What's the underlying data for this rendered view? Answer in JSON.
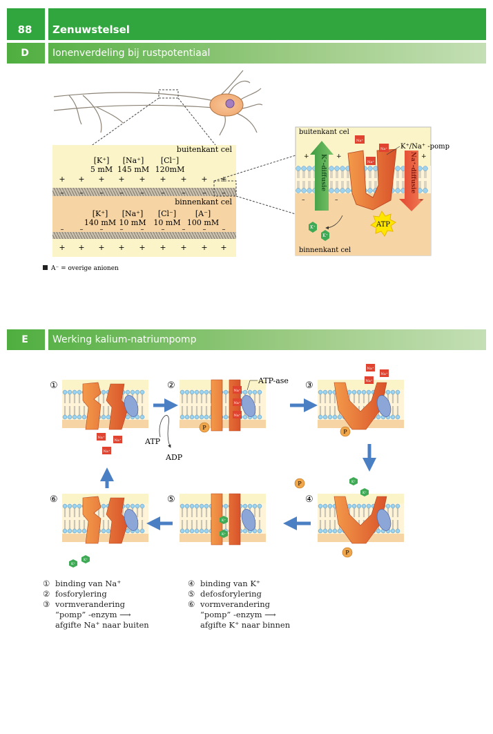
{
  "header": {
    "page_number": "88",
    "chapter_title": "Zenuwstelsel"
  },
  "section_d": {
    "letter": "D",
    "title": "Ionenverdeling bij rustpotentiaal",
    "outside_label": "buitenkant cel",
    "inside_label": "binnenkant cel",
    "outside_ions": [
      {
        "name": "[K⁺]",
        "conc": "5 mM"
      },
      {
        "name": "[Na⁺]",
        "conc": "145 mM"
      },
      {
        "name": "[Cl⁻]",
        "conc": "120mM"
      }
    ],
    "inside_ions": [
      {
        "name": "[K⁺]",
        "conc": "140 mM"
      },
      {
        "name": "[Na⁺]",
        "conc": "10 mM"
      },
      {
        "name": "[Cl⁻]",
        "conc": "10 mM"
      },
      {
        "name": "[A⁻]",
        "conc": "100 mM"
      }
    ],
    "plus": "+",
    "minus": "–",
    "zoom": {
      "outside_label": "buitenkant cel",
      "inside_label": "binnenkant cel",
      "pump_label": "K⁺/Na⁺ -pomp",
      "na": "Na⁺",
      "k": "K⁺",
      "atp": "ATP",
      "k_diffusion": "K⁺-diffusie",
      "na_diffusion": "Na⁺-diffusie"
    },
    "footnote": "A⁻ = overige anionen"
  },
  "section_e": {
    "letter": "E",
    "title": "Werking kalium-natriumpomp",
    "step_markers": [
      "①",
      "②",
      "③",
      "④",
      "⑤",
      "⑥"
    ],
    "atp_ase": "ATP-ase",
    "atp": "ATP",
    "adp": "ADP",
    "phosphate": "P",
    "na": "Na⁺",
    "k": "K⁺",
    "legend_left": [
      {
        "marker": "①",
        "text": "binding van Na⁺"
      },
      {
        "marker": "②",
        "text": "fosforylering"
      },
      {
        "marker": "③",
        "text": "vormverandering"
      },
      {
        "marker": "",
        "text": "“pomp” -enzym ⟶"
      },
      {
        "marker": "",
        "text": "afgifte Na⁺ naar buiten"
      }
    ],
    "legend_right": [
      {
        "marker": "④",
        "text": "binding van K⁺"
      },
      {
        "marker": "⑤",
        "text": "defosforylering"
      },
      {
        "marker": "⑥",
        "text": "vormverandering"
      },
      {
        "marker": "",
        "text": "“pomp” -enzym ⟶"
      },
      {
        "marker": "",
        "text": "afgifte K⁺ naar binnen"
      }
    ]
  },
  "colors": {
    "green_dark": "#31a63e",
    "membrane_blue": "#9dd3ef",
    "outside_fill": "#fbf4c8",
    "inside_fill": "#f6d4a4",
    "pump_orange": "#e8733a",
    "na_red": "#e0432f",
    "k_green": "#3fa956",
    "atp_yellow": "#ffe600",
    "blue_arrow": "#4a7fc4",
    "subunit_blue": "#8da6d8"
  }
}
